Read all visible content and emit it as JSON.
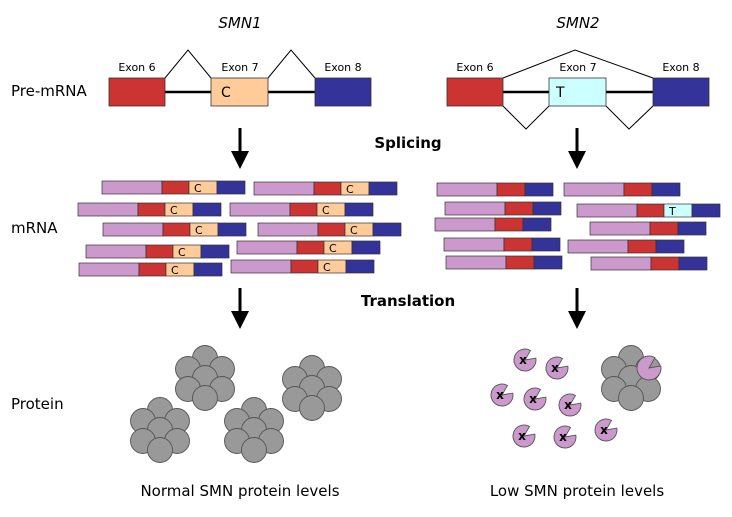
{
  "genes": {
    "left": "SMN1",
    "right": "SMN2"
  },
  "row_labels": {
    "pre_mrna": "Pre-mRNA",
    "mrna": "mRNA",
    "protein": "Protein"
  },
  "exons": {
    "e6": "Exon 6",
    "e7": "Exon 7",
    "e8": "Exon 8"
  },
  "nucleotides": {
    "smn1": "C",
    "smn2": "T"
  },
  "steps": {
    "splicing": "Splicing",
    "translation": "Translation"
  },
  "truncated_marker": "x",
  "levels": {
    "normal": "Normal SMN protein levels",
    "low": "Low SMN protein levels"
  },
  "colors": {
    "exon6": "#cc3333",
    "exon7_smn1": "#ffcc99",
    "exon7_smn2": "#ccffff",
    "exon8": "#333399",
    "upstream": "#cc99cc",
    "protein": "#999999",
    "truncated_protein": "#cc99cc"
  }
}
